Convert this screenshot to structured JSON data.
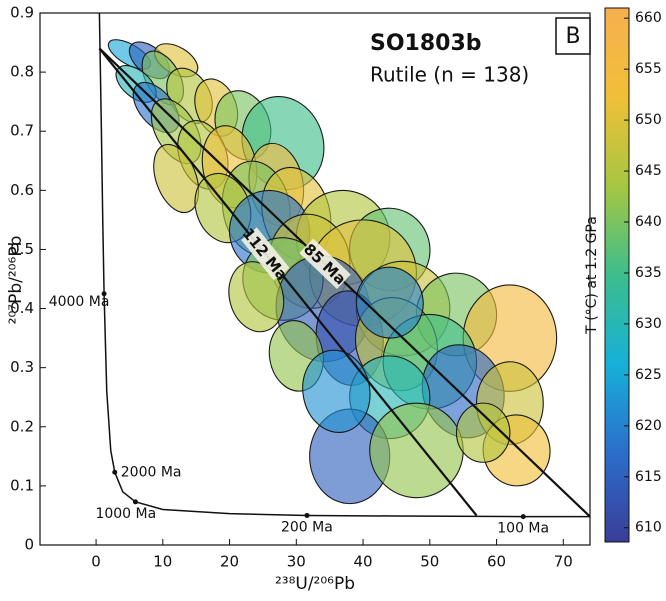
{
  "chart_data": {
    "type": "ellipse-scatter",
    "title": "SO1803b",
    "subtitle": "Rutile (n = 138)",
    "panel_label": "B",
    "x_label": "²³⁸U/²⁰⁶Pb",
    "y_label": "²⁰⁷Pb/²⁰⁶Pb",
    "xlim": [
      -8.4,
      74.0
    ],
    "ylim": [
      0,
      0.9
    ],
    "xticks": [
      0,
      10,
      20,
      30,
      40,
      50,
      60,
      70
    ],
    "yticks": [
      0,
      0.1,
      0.2,
      0.3,
      0.4,
      0.5,
      0.6,
      0.7,
      0.8,
      0.9
    ],
    "colorbar": {
      "label": "T (°C) at 1.2 GPa",
      "clim": [
        608.6,
        661
      ],
      "ticks": [
        610,
        615,
        620,
        625,
        630,
        635,
        640,
        645,
        650,
        655,
        660
      ],
      "colormap": [
        "#3a3d98",
        "#2b6ecb",
        "#17b0d8",
        "#3cbe8c",
        "#a6c641",
        "#f1bf38",
        "#f6b04f"
      ]
    },
    "ellipses": {
      "x": [
        5,
        8,
        12,
        10,
        6,
        14,
        9,
        18,
        12,
        22,
        28,
        16,
        12,
        20,
        27,
        24,
        19,
        30,
        26,
        37,
        44,
        32,
        40,
        28,
        34,
        46,
        24,
        54,
        38,
        45,
        62,
        30,
        50,
        55,
        44,
        62,
        38,
        48,
        63,
        36,
        58,
        44
      ],
      "y": [
        0.83,
        0.82,
        0.82,
        0.79,
        0.78,
        0.76,
        0.74,
        0.74,
        0.7,
        0.71,
        0.68,
        0.66,
        0.62,
        0.64,
        0.61,
        0.57,
        0.57,
        0.56,
        0.53,
        0.52,
        0.5,
        0.48,
        0.46,
        0.45,
        0.4,
        0.4,
        0.42,
        0.39,
        0.35,
        0.34,
        0.35,
        0.32,
        0.31,
        0.26,
        0.25,
        0.24,
        0.15,
        0.16,
        0.16,
        0.26,
        0.19,
        0.41
      ],
      "sx": [
        1.5,
        2,
        2,
        2.5,
        2,
        3,
        2.5,
        3,
        3,
        4,
        6,
        3.5,
        3,
        4,
        4,
        5,
        4,
        5,
        6,
        7,
        6,
        6,
        8,
        6,
        7,
        7,
        4,
        6,
        5,
        6,
        7,
        4,
        7,
        6,
        6,
        5,
        6,
        7,
        5,
        5,
        4,
        5
      ],
      "sy": [
        0.04,
        0.04,
        0.04,
        0.05,
        0.04,
        0.05,
        0.05,
        0.05,
        0.06,
        0.06,
        0.08,
        0.06,
        0.06,
        0.07,
        0.07,
        0.08,
        0.06,
        0.08,
        0.07,
        0.08,
        0.07,
        0.08,
        0.09,
        0.07,
        0.09,
        0.08,
        0.06,
        0.07,
        0.08,
        0.08,
        0.09,
        0.06,
        0.08,
        0.08,
        0.07,
        0.07,
        0.08,
        0.08,
        0.06,
        0.07,
        0.05,
        0.06
      ],
      "angle": [
        -60,
        -50,
        -60,
        -30,
        -50,
        -30,
        -40,
        -20,
        -30,
        -20,
        -20,
        -20,
        -20,
        -10,
        -10,
        -10,
        -20,
        -15,
        -15,
        -20,
        -20,
        -10,
        -10,
        -15,
        -10,
        -10,
        -15,
        -10,
        -5,
        -20,
        0,
        -10,
        -10,
        -20,
        -10,
        0,
        0,
        -10,
        -10,
        -10,
        0,
        -10
      ],
      "T": [
        625,
        615,
        650,
        640,
        630,
        645,
        618,
        650,
        643,
        640,
        635,
        645,
        648,
        652,
        655,
        640,
        645,
        650,
        618,
        645,
        638,
        648,
        650,
        640,
        614,
        648,
        645,
        640,
        612,
        646,
        655,
        642,
        635,
        616,
        630,
        648,
        615,
        642,
        652,
        622,
        645,
        620
      ]
    },
    "concordia": {
      "x": [
        0.5,
        0.8,
        1.0,
        1.2,
        1.6,
        2.2,
        2.8,
        4,
        5.9,
        10,
        20,
        31.6,
        45,
        64,
        74
      ],
      "y": [
        0.9,
        0.7,
        0.55,
        0.425,
        0.26,
        0.16,
        0.123,
        0.09,
        0.073,
        0.06,
        0.053,
        0.05,
        0.049,
        0.048,
        0.048
      ]
    },
    "concordia_ages": {
      "labels": [
        "4000 Ma",
        "2000 Ma",
        "1000 Ma",
        "200 Ma",
        "100 Ma"
      ],
      "x": [
        1.2,
        2.8,
        5.9,
        31.6,
        64
      ],
      "y": [
        0.425,
        0.123,
        0.073,
        0.05,
        0.048
      ]
    },
    "discordia": [
      {
        "label": "85 Ma",
        "x": [
          0.5,
          74
        ],
        "y": [
          0.84,
          0.048
        ]
      },
      {
        "label": "112 Ma",
        "x": [
          0.5,
          57
        ],
        "y": [
          0.84,
          0.05
        ]
      }
    ]
  }
}
